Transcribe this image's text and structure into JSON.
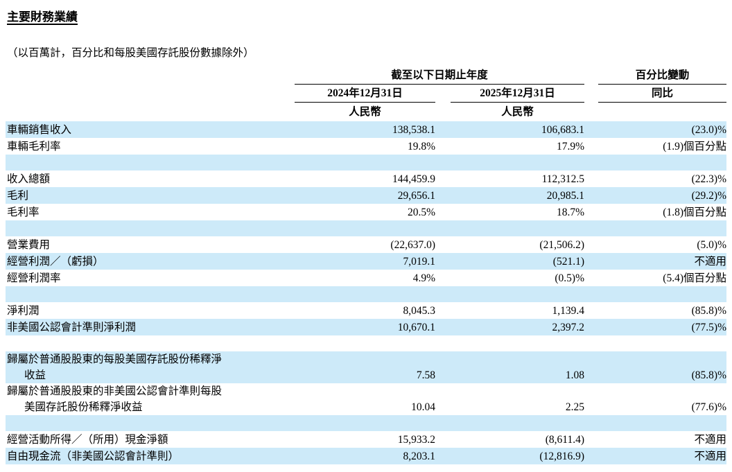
{
  "document": {
    "title": "主要財務業績",
    "subtitle": "（以百萬計，百分比和每股美國存託股份數據除外）"
  },
  "table": {
    "header": {
      "period_group_label": "截至以下日期止年度",
      "change_group_label": "百分比變動",
      "period_2024_label": "2024年12月31日",
      "period_2025_label": "2025年12月31日",
      "change_col_label": "同比",
      "currency_2024": "人民幣",
      "currency_2025": "人民幣"
    },
    "rows": [
      {
        "type": "data",
        "label": "車輛銷售收入",
        "v2024": "138,538.1",
        "v2025": "106,683.1",
        "yoy": "(23.0)%"
      },
      {
        "type": "data",
        "label": "車輛毛利率",
        "v2024": "19.8%",
        "v2025": "17.9%",
        "yoy": "(1.9)個百分點"
      },
      {
        "type": "blank"
      },
      {
        "type": "data",
        "label": "收入總額",
        "v2024": "144,459.9",
        "v2025": "112,312.5",
        "yoy": "(22.3)%"
      },
      {
        "type": "data",
        "label": "毛利",
        "v2024": "29,656.1",
        "v2025": "20,985.1",
        "yoy": "(29.2)%"
      },
      {
        "type": "data",
        "label": "毛利率",
        "v2024": "20.5%",
        "v2025": "18.7%",
        "yoy": "(1.8)個百分點"
      },
      {
        "type": "blank"
      },
      {
        "type": "data",
        "label": "營業費用",
        "v2024": "(22,637.0)",
        "v2025": "(21,506.2)",
        "yoy": "(5.0)%"
      },
      {
        "type": "data",
        "label": "經營利潤／（虧損）",
        "v2024": "7,019.1",
        "v2025": "(521.1)",
        "yoy": "不適用"
      },
      {
        "type": "data",
        "label": "經營利潤率",
        "v2024": "4.9%",
        "v2025": "(0.5)%",
        "yoy": "(5.4)個百分點"
      },
      {
        "type": "blank"
      },
      {
        "type": "data",
        "label": "淨利潤",
        "v2024": "8,045.3",
        "v2025": "1,139.4",
        "yoy": "(85.8)%"
      },
      {
        "type": "data",
        "label": "非美國公認會計準則淨利潤",
        "v2024": "10,670.1",
        "v2025": "2,397.2",
        "yoy": "(77.5)%"
      },
      {
        "type": "blank"
      },
      {
        "type": "data",
        "label": "歸屬於普通股股東的每股美國存託股份稀釋淨",
        "label2": "收益",
        "v2024": "7.58",
        "v2025": "1.08",
        "yoy": "(85.8)%"
      },
      {
        "type": "data",
        "label": "歸屬於普通股股東的非美國公認會計準則每股",
        "label2": "美國存託股份稀釋淨收益",
        "v2024": "10.04",
        "v2025": "2.25",
        "yoy": "(77.6)%"
      },
      {
        "type": "blank"
      },
      {
        "type": "data",
        "label": "經營活動所得／（所用）現金淨額",
        "v2024": "15,933.2",
        "v2025": "(8,611.4)",
        "yoy": "不適用"
      },
      {
        "type": "data",
        "label": "自由現金流（非美國公認會計準則）",
        "v2024": "8,203.1",
        "v2025": "(12,816.9)",
        "yoy": "不適用"
      }
    ]
  },
  "colors": {
    "row_stripe": "#cdeaf9",
    "rule": "#000000",
    "text": "#000000"
  }
}
